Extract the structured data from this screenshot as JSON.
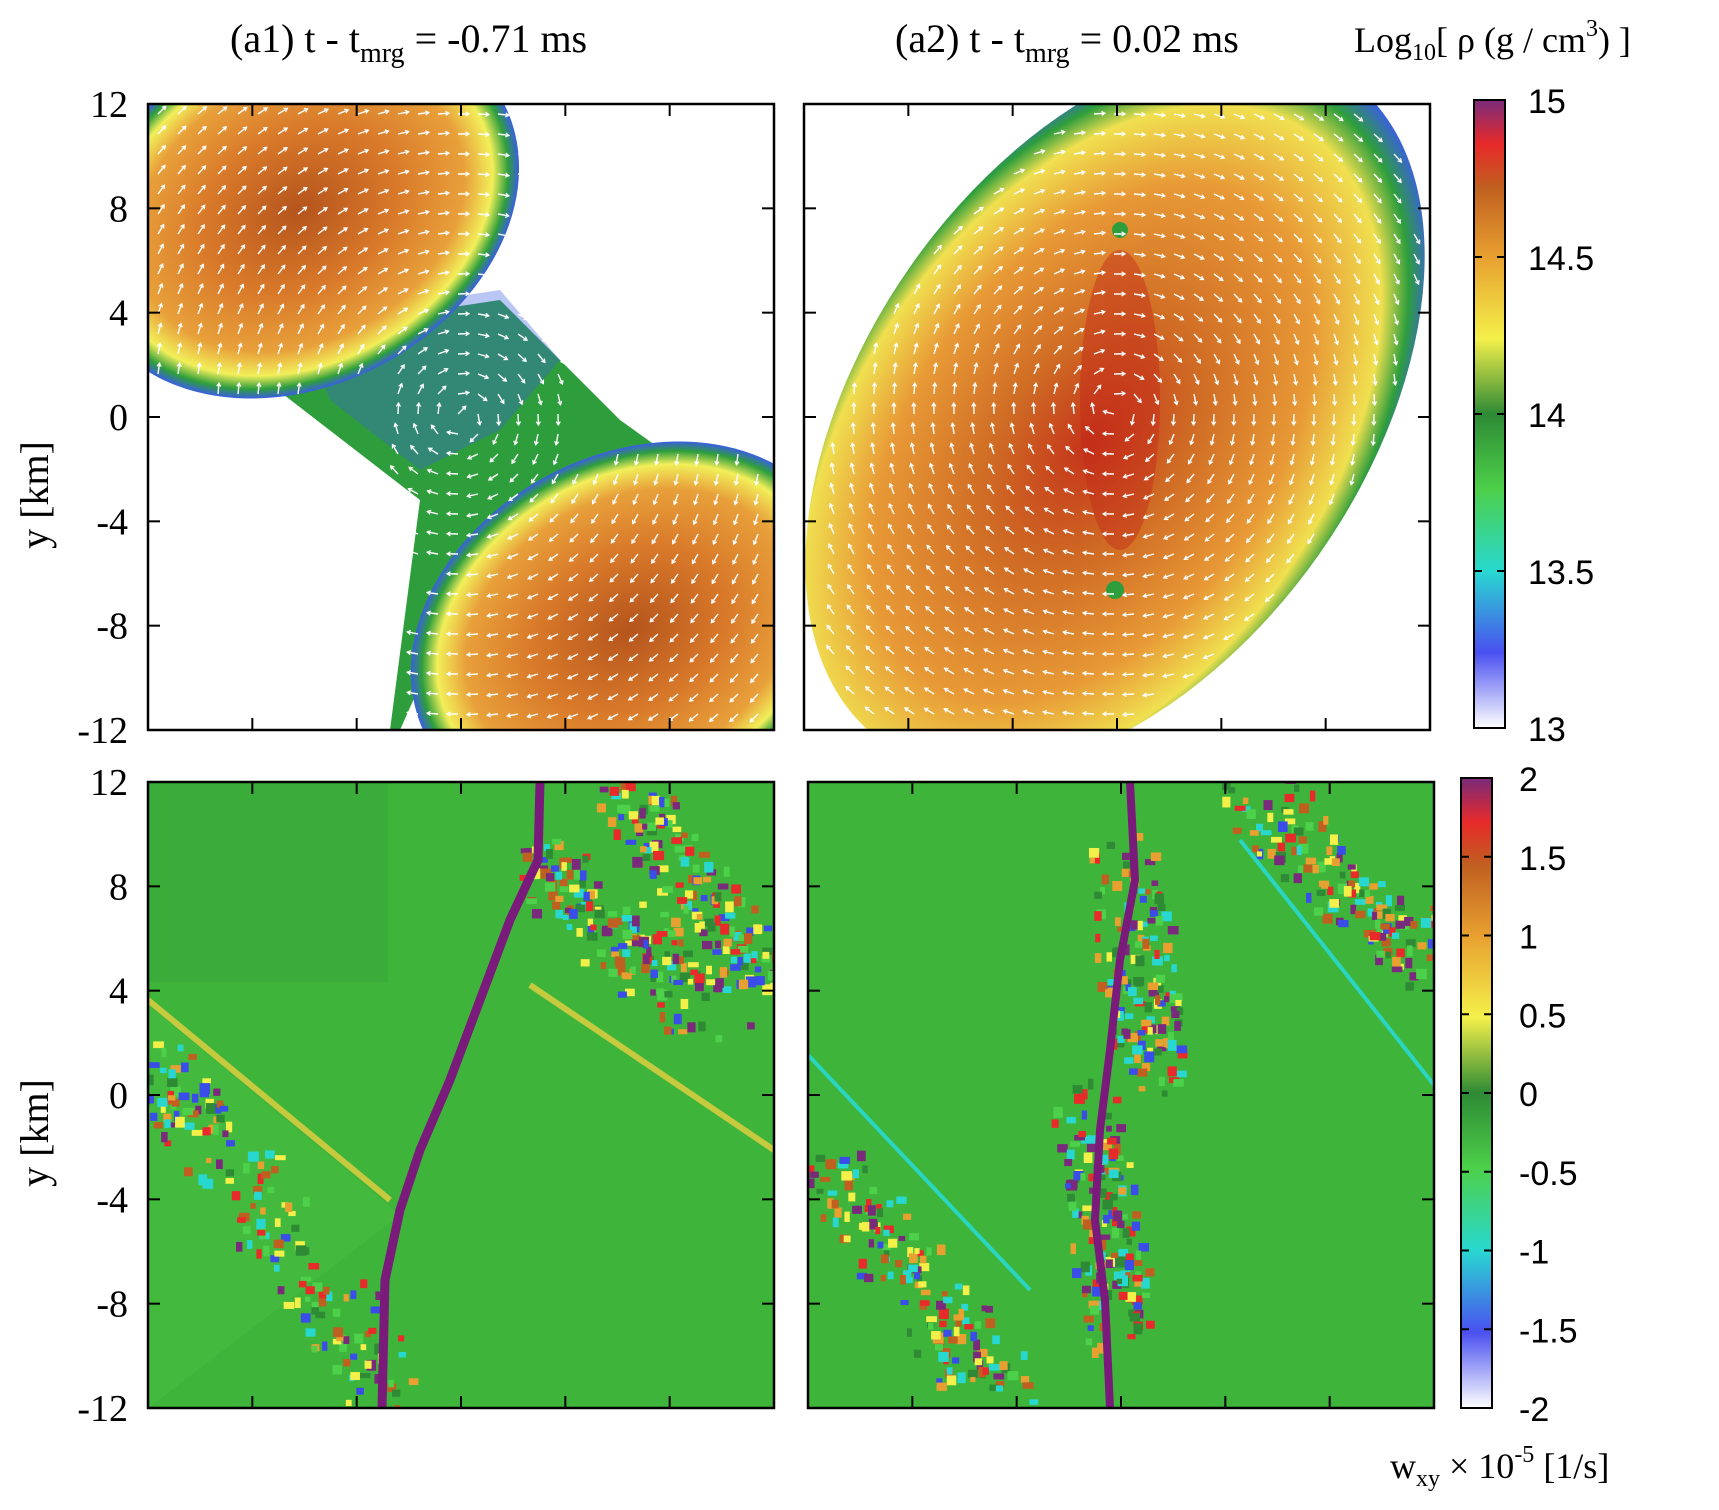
{
  "chart_data": [
    {
      "type": "heatmap",
      "panel": "top-left",
      "title_main": "(a1) t - t",
      "title_sub": "mrg",
      "title_tail": " = -0.71 ms",
      "ylabel": "y [km]",
      "xlim": [
        -12,
        12
      ],
      "ylim": [
        -12,
        12
      ],
      "yticks": [
        12,
        8,
        4,
        0,
        -4,
        -8,
        -12
      ],
      "quantity": "density",
      "overlay": "velocity arrows",
      "colors": {
        "core": "#b5541c",
        "mid": "#e8963a",
        "surface": "#f2ef5a",
        "edge": "#2e9e3c",
        "outer": "#3a5fe0"
      }
    },
    {
      "type": "heatmap",
      "panel": "top-right",
      "title_main": "(a2) t - t",
      "title_sub": "mrg",
      "title_tail": " = 0.02 ms",
      "xlim": [
        -12,
        12
      ],
      "ylim": [
        -12,
        12
      ],
      "quantity": "density",
      "overlay": "velocity arrows"
    },
    {
      "type": "heatmap",
      "panel": "bottom-left",
      "ylabel": "y [km]",
      "xlim": [
        -12,
        12
      ],
      "ylim": [
        -12,
        12
      ],
      "yticks": [
        12,
        8,
        4,
        0,
        -4,
        -8,
        -12
      ],
      "quantity": "vorticity",
      "background_color": "#3fb43a"
    },
    {
      "type": "heatmap",
      "panel": "bottom-right",
      "xlim": [
        -12,
        12
      ],
      "ylim": [
        -12,
        12
      ],
      "quantity": "vorticity",
      "background_color": "#3fb43a"
    }
  ],
  "colorbar_top": {
    "label_pre": "Log",
    "label_sub": "10",
    "label_mid": "[ ρ (g / cm",
    "label_sup": "3",
    "label_post": ") ]",
    "ticks": [
      "15",
      "14.5",
      "14",
      "13.5",
      "13"
    ],
    "range": [
      13,
      15
    ]
  },
  "colorbar_bottom": {
    "label_pre": "w",
    "label_sub": "xy",
    "label_mid": " × 10",
    "label_sup": "-5",
    "label_post": " [1/s]",
    "ticks": [
      "2",
      "1.5",
      "1",
      "0.5",
      "0",
      "-0.5",
      "-1",
      "-1.5",
      "-2"
    ],
    "range": [
      -2,
      2
    ]
  },
  "palette": [
    "#ffffff",
    "#3a4de8",
    "#28d8d0",
    "#4dd04a",
    "#2e8a35",
    "#f4f04a",
    "#e8a030",
    "#c06020",
    "#e82a2a",
    "#7a2a7a"
  ]
}
